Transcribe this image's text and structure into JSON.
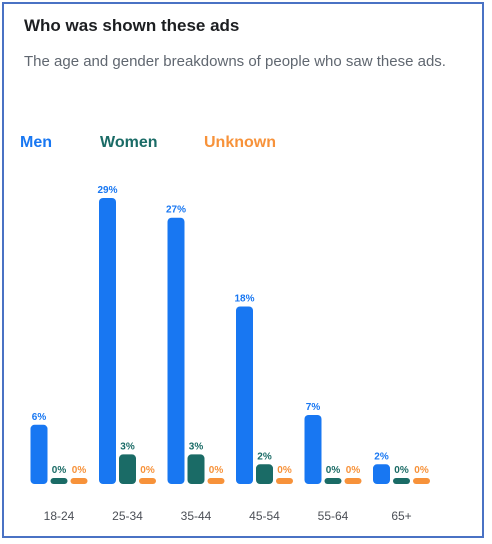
{
  "card": {
    "title": "Who was shown these ads",
    "subtitle": "The age and gender breakdowns of people who saw these ads."
  },
  "colors": {
    "men": "#1877f2",
    "women": "#1a6b66",
    "unknown": "#f7923a",
    "axis_text": "#4b4f56",
    "border": "#4a72c4"
  },
  "chart_data": {
    "type": "bar",
    "categories": [
      "18-24",
      "25-34",
      "35-44",
      "45-54",
      "55-64",
      "65+"
    ],
    "series": [
      {
        "name": "Men",
        "values": [
          6,
          29,
          27,
          18,
          7,
          2
        ],
        "labels": [
          "6%",
          "29%",
          "27%",
          "18%",
          "7%",
          "2%"
        ]
      },
      {
        "name": "Women",
        "values": [
          0,
          3,
          3,
          2,
          0,
          0
        ],
        "labels": [
          "0%",
          "3%",
          "3%",
          "2%",
          "0%",
          "0%"
        ]
      },
      {
        "name": "Unknown",
        "values": [
          0,
          0,
          0,
          0,
          0,
          0
        ],
        "labels": [
          "0%",
          "0%",
          "0%",
          "0%",
          "0%",
          "0%"
        ]
      }
    ],
    "ylim": [
      0,
      29
    ],
    "legend": "top-left",
    "grid": false,
    "xlabel": "",
    "ylabel": ""
  }
}
